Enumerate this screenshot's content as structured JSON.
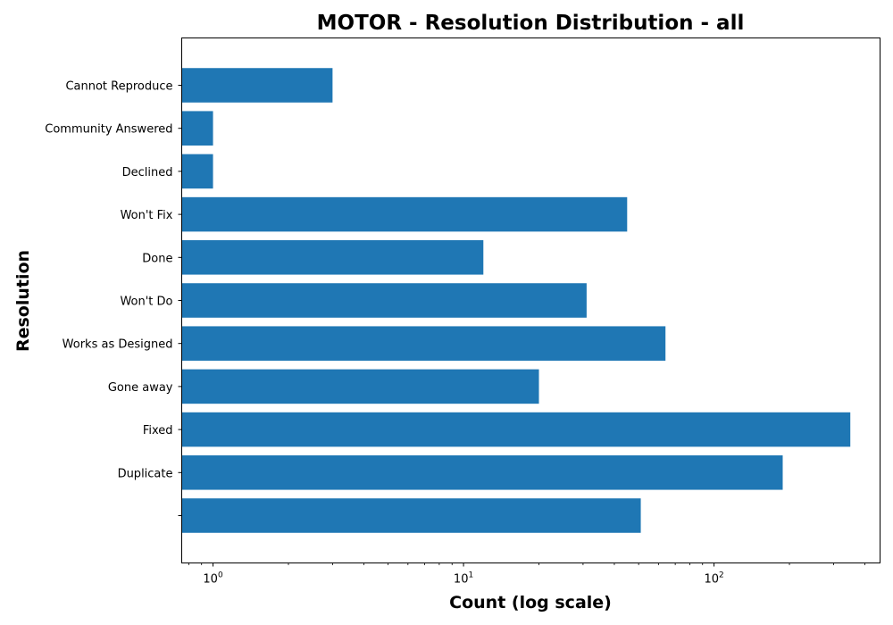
{
  "chart_data": {
    "type": "bar",
    "orientation": "horizontal",
    "title": "MOTOR - Resolution Distribution - all",
    "xlabel": "Count (log scale)",
    "ylabel": "Resolution",
    "x_scale": "log",
    "xlim": [
      0.75,
      460
    ],
    "x_ticks": [
      {
        "base": "10",
        "exp": "0",
        "value": 1
      },
      {
        "base": "10",
        "exp": "1",
        "value": 10
      },
      {
        "base": "10",
        "exp": "2",
        "value": 100
      }
    ],
    "grid": false,
    "legend": "none",
    "bar_color": "#1f77b4",
    "categories": [
      "",
      "Duplicate",
      "Fixed",
      "Gone away",
      "Works as Designed",
      "Won't Do",
      "Done",
      "Won't Fix",
      "Declined",
      "Community Answered",
      "Cannot Reproduce"
    ],
    "values": [
      51,
      188,
      350,
      20,
      64,
      31,
      12,
      45,
      1,
      1,
      3
    ]
  }
}
